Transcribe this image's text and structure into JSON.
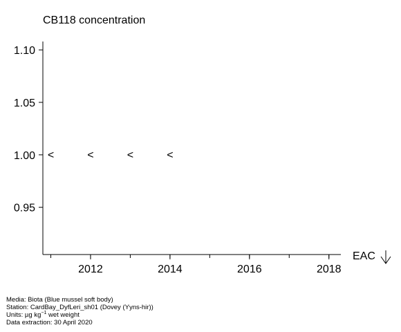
{
  "chart_data": {
    "type": "scatter",
    "title": "CB118 concentration",
    "xlabel": "",
    "ylabel": "",
    "xlim": [
      2010.8,
      2018.3
    ],
    "ylim": [
      0.905,
      1.108
    ],
    "x_ticks": [
      2012,
      2014,
      2016,
      2018
    ],
    "x_minor_ticks": [
      2011,
      2012,
      2013,
      2014,
      2015,
      2016,
      2017,
      2018
    ],
    "y_ticks": [
      0.95,
      1.0,
      1.05,
      1.1
    ],
    "y_tick_labels": [
      "0.95",
      "1.00",
      "1.05",
      "1.10"
    ],
    "series": [
      {
        "marker": "<",
        "x": [
          2011,
          2012,
          2013,
          2014
        ],
        "y": [
          1.0,
          1.0,
          1.0,
          1.0
        ]
      }
    ],
    "grid": false,
    "eac_label": "EAC",
    "eac_arrow": "down"
  },
  "footer": {
    "media": "Media: Biota (Blue mussel soft body)",
    "station": "Station: CardBay_DyfLeri_sh01 (Dovey (Yyns-hir))",
    "units_prefix": "Units:  µg kg",
    "units_sup": "−1",
    "units_suffix": " wet weight",
    "extraction": "Data extraction: 30 April 2020"
  }
}
